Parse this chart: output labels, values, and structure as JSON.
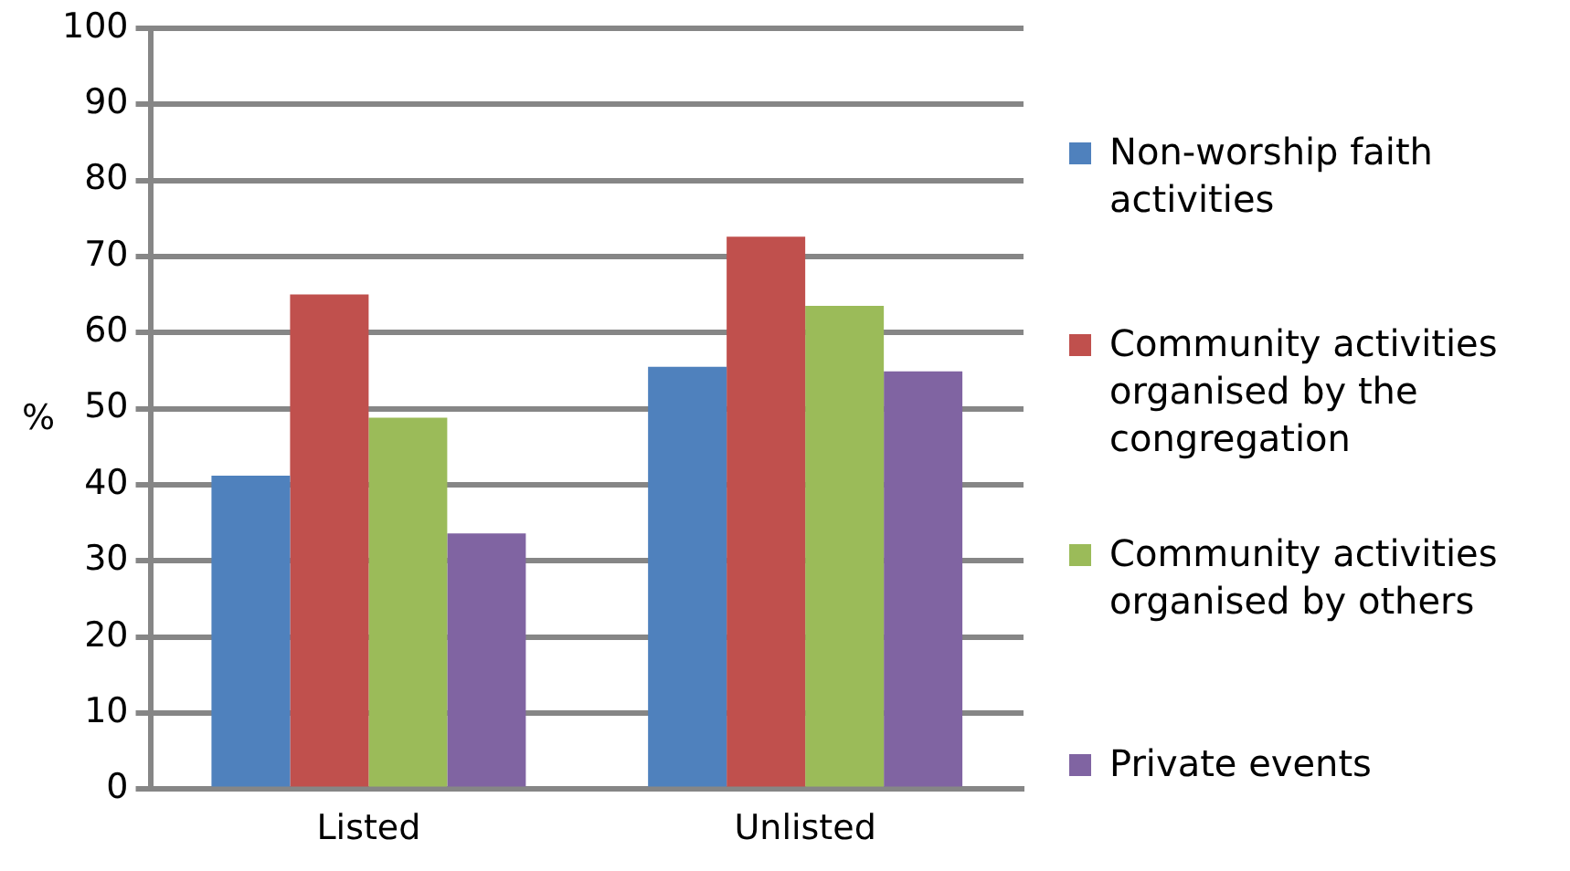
{
  "chart_data": {
    "type": "bar",
    "ylabel": "%",
    "categories": [
      "Listed",
      "Unlisted"
    ],
    "series": [
      {
        "name": "Non-worship faith activities",
        "color": "#4f81bd",
        "values": [
          41.2,
          55.5
        ]
      },
      {
        "name": "Community activities organised by the congregation",
        "color": "#c0504d",
        "values": [
          65.0,
          72.6
        ]
      },
      {
        "name": "Community activities organised by others",
        "color": "#9bbb59",
        "values": [
          48.8,
          63.5
        ]
      },
      {
        "name": "Private events",
        "color": "#8064a2",
        "values": [
          33.6,
          54.9
        ]
      }
    ],
    "ylim": [
      0,
      100
    ],
    "yticks": [
      0,
      10,
      20,
      30,
      40,
      50,
      60,
      70,
      80,
      90,
      100
    ],
    "grid": "y",
    "legend": "right"
  }
}
